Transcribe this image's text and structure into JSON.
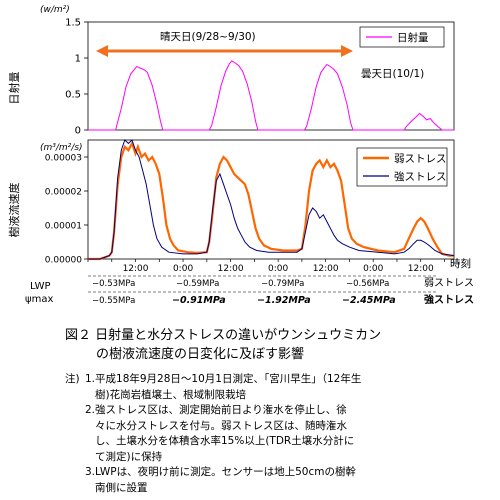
{
  "chart_data": [
    {
      "type": "line",
      "unit_label": "(w/m²)",
      "ylabel": "日射量",
      "ylim": [
        0,
        1.5
      ],
      "yticks": [
        "0",
        "0.5",
        "1",
        "1.5"
      ],
      "grid": false,
      "legend": {
        "position": "top-right",
        "entries": [
          "日射量"
        ]
      },
      "annotations": {
        "sunny": "晴天日(9/28~9/30)",
        "cloudy": "曇天日(10/1)"
      },
      "series": [
        {
          "name": "日射量",
          "color": "#ff00ff",
          "points": [
            [
              0.0,
              0
            ],
            [
              0.4,
              0
            ],
            [
              0.8,
              0
            ],
            [
              1.16,
              0
            ],
            [
              1.2,
              0.05
            ],
            [
              1.4,
              0.3
            ],
            [
              1.6,
              0.6
            ],
            [
              1.8,
              0.78
            ],
            [
              1.95,
              0.84
            ],
            [
              2.05,
              0.88
            ],
            [
              2.2,
              0.86
            ],
            [
              2.35,
              0.84
            ],
            [
              2.5,
              0.8
            ],
            [
              2.7,
              0.62
            ],
            [
              2.9,
              0.36
            ],
            [
              3.05,
              0.12
            ],
            [
              3.15,
              0
            ],
            [
              5.1,
              0
            ],
            [
              5.2,
              0.06
            ],
            [
              5.4,
              0.32
            ],
            [
              5.6,
              0.62
            ],
            [
              5.8,
              0.82
            ],
            [
              5.95,
              0.92
            ],
            [
              6.05,
              0.96
            ],
            [
              6.2,
              0.93
            ],
            [
              6.35,
              0.89
            ],
            [
              6.5,
              0.82
            ],
            [
              6.7,
              0.64
            ],
            [
              6.9,
              0.38
            ],
            [
              7.05,
              0.12
            ],
            [
              7.15,
              0
            ],
            [
              9.1,
              0
            ],
            [
              9.2,
              0.05
            ],
            [
              9.4,
              0.3
            ],
            [
              9.6,
              0.6
            ],
            [
              9.8,
              0.8
            ],
            [
              9.95,
              0.87
            ],
            [
              10.05,
              0.91
            ],
            [
              10.2,
              0.88
            ],
            [
              10.35,
              0.84
            ],
            [
              10.5,
              0.78
            ],
            [
              10.7,
              0.6
            ],
            [
              10.9,
              0.35
            ],
            [
              11.05,
              0.1
            ],
            [
              11.15,
              0
            ],
            [
              13.3,
              0
            ],
            [
              13.4,
              0.05
            ],
            [
              13.6,
              0.12
            ],
            [
              13.8,
              0.18
            ],
            [
              13.95,
              0.23
            ],
            [
              14.1,
              0.19
            ],
            [
              14.25,
              0.14
            ],
            [
              14.4,
              0.16
            ],
            [
              14.55,
              0.1
            ],
            [
              14.75,
              0.04
            ],
            [
              14.9,
              0
            ],
            [
              15.4,
              0
            ]
          ]
        }
      ]
    },
    {
      "type": "line",
      "unit_label": "(m³/m²/s)",
      "ylabel": "樹液流速度",
      "ylim": [
        0,
        3.5e-05
      ],
      "yticks": [
        "0.00000",
        "0.00001",
        "0.00002",
        "0.00003"
      ],
      "xlabel": "時刻",
      "xticks": [
        "12:00",
        "0:00",
        "12:00",
        "0:00",
        "12:00",
        "0:00",
        "12:00"
      ],
      "grid": false,
      "legend": {
        "position": "top-right",
        "entries": [
          "弱ストレス",
          "強ストレス"
        ]
      },
      "series": [
        {
          "name": "弱ストレス",
          "color": "#ff6600",
          "points": [
            [
              0.0,
              0
            ],
            [
              0.5,
              0
            ],
            [
              0.9,
              1e-06
            ],
            [
              1.0,
              2e-06
            ],
            [
              1.1,
              8e-06
            ],
            [
              1.25,
              2.2e-05
            ],
            [
              1.4,
              3e-05
            ],
            [
              1.55,
              3.3e-05
            ],
            [
              1.7,
              3.2e-05
            ],
            [
              1.85,
              3.4e-05
            ],
            [
              2.0,
              3.1e-05
            ],
            [
              2.1,
              3.3e-05
            ],
            [
              2.25,
              3e-05
            ],
            [
              2.4,
              3.1e-05
            ],
            [
              2.55,
              2.9e-05
            ],
            [
              2.7,
              3e-05
            ],
            [
              2.85,
              2.8e-05
            ],
            [
              3.0,
              2.5e-05
            ],
            [
              3.15,
              1.8e-05
            ],
            [
              3.3,
              1e-05
            ],
            [
              3.45,
              6e-06
            ],
            [
              3.6,
              4e-06
            ],
            [
              3.8,
              2.5e-06
            ],
            [
              4.2,
              2e-06
            ],
            [
              4.6,
              1.8e-06
            ],
            [
              5.0,
              2e-06
            ],
            [
              5.1,
              5e-06
            ],
            [
              5.25,
              1.4e-05
            ],
            [
              5.4,
              2.4e-05
            ],
            [
              5.55,
              2.8e-05
            ],
            [
              5.7,
              3e-05
            ],
            [
              5.85,
              2.9e-05
            ],
            [
              6.0,
              2.7e-05
            ],
            [
              6.15,
              2.5e-05
            ],
            [
              6.3,
              2.4e-05
            ],
            [
              6.45,
              2.3e-05
            ],
            [
              6.6,
              2.2e-05
            ],
            [
              6.75,
              1.9e-05
            ],
            [
              6.9,
              1.4e-05
            ],
            [
              7.05,
              9e-06
            ],
            [
              7.2,
              6e-06
            ],
            [
              7.4,
              4e-06
            ],
            [
              7.7,
              3e-06
            ],
            [
              8.2,
              2.5e-06
            ],
            [
              8.8,
              2.5e-06
            ],
            [
              9.0,
              3e-06
            ],
            [
              9.15,
              1e-05
            ],
            [
              9.3,
              2e-05
            ],
            [
              9.45,
              2.6e-05
            ],
            [
              9.6,
              2.8e-05
            ],
            [
              9.75,
              2.9e-05
            ],
            [
              9.9,
              2.7e-05
            ],
            [
              10.05,
              2.9e-05
            ],
            [
              10.2,
              2.7e-05
            ],
            [
              10.35,
              2.8e-05
            ],
            [
              10.5,
              2.6e-05
            ],
            [
              10.65,
              2.3e-05
            ],
            [
              10.8,
              1.6e-05
            ],
            [
              10.95,
              9e-06
            ],
            [
              11.1,
              6e-06
            ],
            [
              11.3,
              4.5e-06
            ],
            [
              11.6,
              3.5e-06
            ],
            [
              12.2,
              2.5e-06
            ],
            [
              12.9,
              2e-06
            ],
            [
              13.3,
              3e-06
            ],
            [
              13.5,
              6e-06
            ],
            [
              13.7,
              9e-06
            ],
            [
              13.85,
              1.1e-05
            ],
            [
              14.0,
              1.2e-05
            ],
            [
              14.15,
              1.1e-05
            ],
            [
              14.3,
              9e-06
            ],
            [
              14.5,
              6e-06
            ],
            [
              14.7,
              3.5e-06
            ],
            [
              14.9,
              1.5e-06
            ],
            [
              15.2,
              1e-06
            ],
            [
              15.4,
              1e-06
            ]
          ]
        },
        {
          "name": "強ストレス",
          "color": "#000080",
          "points": [
            [
              0.0,
              0
            ],
            [
              0.5,
              0
            ],
            [
              0.9,
              1e-06
            ],
            [
              1.0,
              2e-06
            ],
            [
              1.1,
              8e-06
            ],
            [
              1.25,
              2.4e-05
            ],
            [
              1.4,
              3.2e-05
            ],
            [
              1.55,
              3.5e-05
            ],
            [
              1.7,
              3.4e-05
            ],
            [
              1.85,
              3.5e-05
            ],
            [
              2.0,
              3.2e-05
            ],
            [
              2.15,
              3e-05
            ],
            [
              2.3,
              2.6e-05
            ],
            [
              2.45,
              2.2e-05
            ],
            [
              2.6,
              1.6e-05
            ],
            [
              2.75,
              1e-05
            ],
            [
              2.9,
              6e-06
            ],
            [
              3.1,
              3.5e-06
            ],
            [
              3.4,
              2e-06
            ],
            [
              4.0,
              1.5e-06
            ],
            [
              4.6,
              1.5e-06
            ],
            [
              5.0,
              2e-06
            ],
            [
              5.1,
              5e-06
            ],
            [
              5.25,
              1.5e-05
            ],
            [
              5.4,
              2.3e-05
            ],
            [
              5.55,
              2.5e-05
            ],
            [
              5.7,
              2.2e-05
            ],
            [
              5.85,
              1.9e-05
            ],
            [
              6.0,
              1.6e-05
            ],
            [
              6.15,
              1.2e-05
            ],
            [
              6.3,
              9e-06
            ],
            [
              6.45,
              7e-06
            ],
            [
              6.6,
              5e-06
            ],
            [
              6.8,
              3.5e-06
            ],
            [
              7.1,
              2.5e-06
            ],
            [
              7.6,
              2e-06
            ],
            [
              8.2,
              2e-06
            ],
            [
              8.8,
              2e-06
            ],
            [
              9.0,
              3e-06
            ],
            [
              9.15,
              8e-06
            ],
            [
              9.3,
              1.3e-05
            ],
            [
              9.45,
              1.5e-05
            ],
            [
              9.6,
              1.4e-05
            ],
            [
              9.75,
              1.2e-05
            ],
            [
              9.9,
              1.3e-05
            ],
            [
              10.05,
              1.1e-05
            ],
            [
              10.2,
              9e-06
            ],
            [
              10.35,
              7e-06
            ],
            [
              10.5,
              5.5e-06
            ],
            [
              10.7,
              4.5e-06
            ],
            [
              11.0,
              3.5e-06
            ],
            [
              11.4,
              2.5e-06
            ],
            [
              12.2,
              2e-06
            ],
            [
              12.9,
              1.5e-06
            ],
            [
              13.3,
              2e-06
            ],
            [
              13.5,
              3e-06
            ],
            [
              13.7,
              4.5e-06
            ],
            [
              13.85,
              5.5e-06
            ],
            [
              14.0,
              5.5e-06
            ],
            [
              14.15,
              5e-06
            ],
            [
              14.35,
              4e-06
            ],
            [
              14.6,
              2.5e-06
            ],
            [
              14.9,
              1.5e-06
            ],
            [
              15.4,
              1e-06
            ]
          ]
        }
      ]
    }
  ],
  "lwp": {
    "label": "LWP",
    "psi_label": "ψmax",
    "weak_row": [
      "−0.53MPa",
      "−0.59MPa",
      "−0.79MPa",
      "−0.56MPa"
    ],
    "weak_row_label": "弱ストレス",
    "strong_row": [
      "−0.55MPa",
      "−0.91MPa",
      "−1.92MPa",
      "−2.45MPa"
    ],
    "strong_row_label": "強ストレス"
  },
  "caption": {
    "line1": "図２ 日射量と水分ストレスの違いがウンシュウミカン",
    "line2": "の樹液流速度の日変化に及ぼす影響"
  },
  "notes": {
    "prefix": "注)",
    "lines": [
      "1.平成18年9月28日～10月1日測定、「宮川早生」（12年生",
      "  樹)花崗岩植壌土、根域制限栽培",
      "2.強ストレス区は、測定開始前日より潅水を停止し、徐",
      "  々に水分ストレスを付与。弱ストレス区は、随時潅水",
      "  し、土壌水分を体積含水率15%以上(TDR土壌水分計に",
      "  て測定)に保持",
      "3.LWPは、夜明け前に測定。センサーは地上50cmの樹幹",
      "  南側に設置"
    ]
  }
}
